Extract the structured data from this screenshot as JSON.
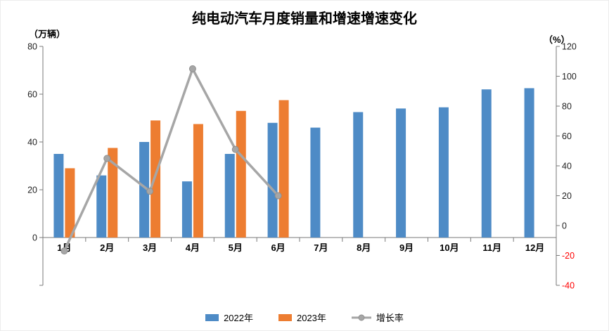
{
  "title": "纯电动汽车月度销量和增速增速变化",
  "left_axis": {
    "unit": "（万辆）",
    "min": -20,
    "max": 80,
    "step": 20,
    "labels": [
      0,
      20,
      40,
      60,
      80
    ]
  },
  "right_axis": {
    "unit": "（%）",
    "min": -40,
    "max": 120,
    "step": 20,
    "labels": [
      120,
      100,
      80,
      60,
      40,
      20,
      0,
      -20,
      -40
    ],
    "negative_color": "#FF0000"
  },
  "chart_data": {
    "type": "bar+line",
    "title": "纯电动汽车月度销量和增速增速变化",
    "categories": [
      "1月",
      "2月",
      "3月",
      "4月",
      "5月",
      "6月",
      "7月",
      "8月",
      "9月",
      "10月",
      "11月",
      "12月"
    ],
    "series": [
      {
        "name": "2022年",
        "type": "bar",
        "axis": "left",
        "color": "#4E8BC6",
        "values": [
          35,
          26,
          40,
          23.5,
          35,
          48,
          46,
          52.5,
          54,
          54.5,
          62,
          62.5
        ]
      },
      {
        "name": "2023年",
        "type": "bar",
        "axis": "left",
        "color": "#ED7D31",
        "values": [
          29,
          37.5,
          49,
          47.5,
          53,
          57.5,
          null,
          null,
          null,
          null,
          null,
          null
        ]
      },
      {
        "name": "增长率",
        "type": "line",
        "axis": "right",
        "color": "#A6A6A6",
        "values": [
          -17,
          45,
          23,
          105,
          51,
          20,
          null,
          null,
          null,
          null,
          null,
          null
        ]
      }
    ],
    "legend_position": "bottom",
    "grid": false,
    "left_ylim": [
      -20,
      80
    ],
    "right_ylim": [
      -40,
      120
    ]
  },
  "colors": {
    "axis_line": "#7A7A7A",
    "tick_text": "#1F1F1F",
    "marker_stroke": "#8F8F8F"
  }
}
